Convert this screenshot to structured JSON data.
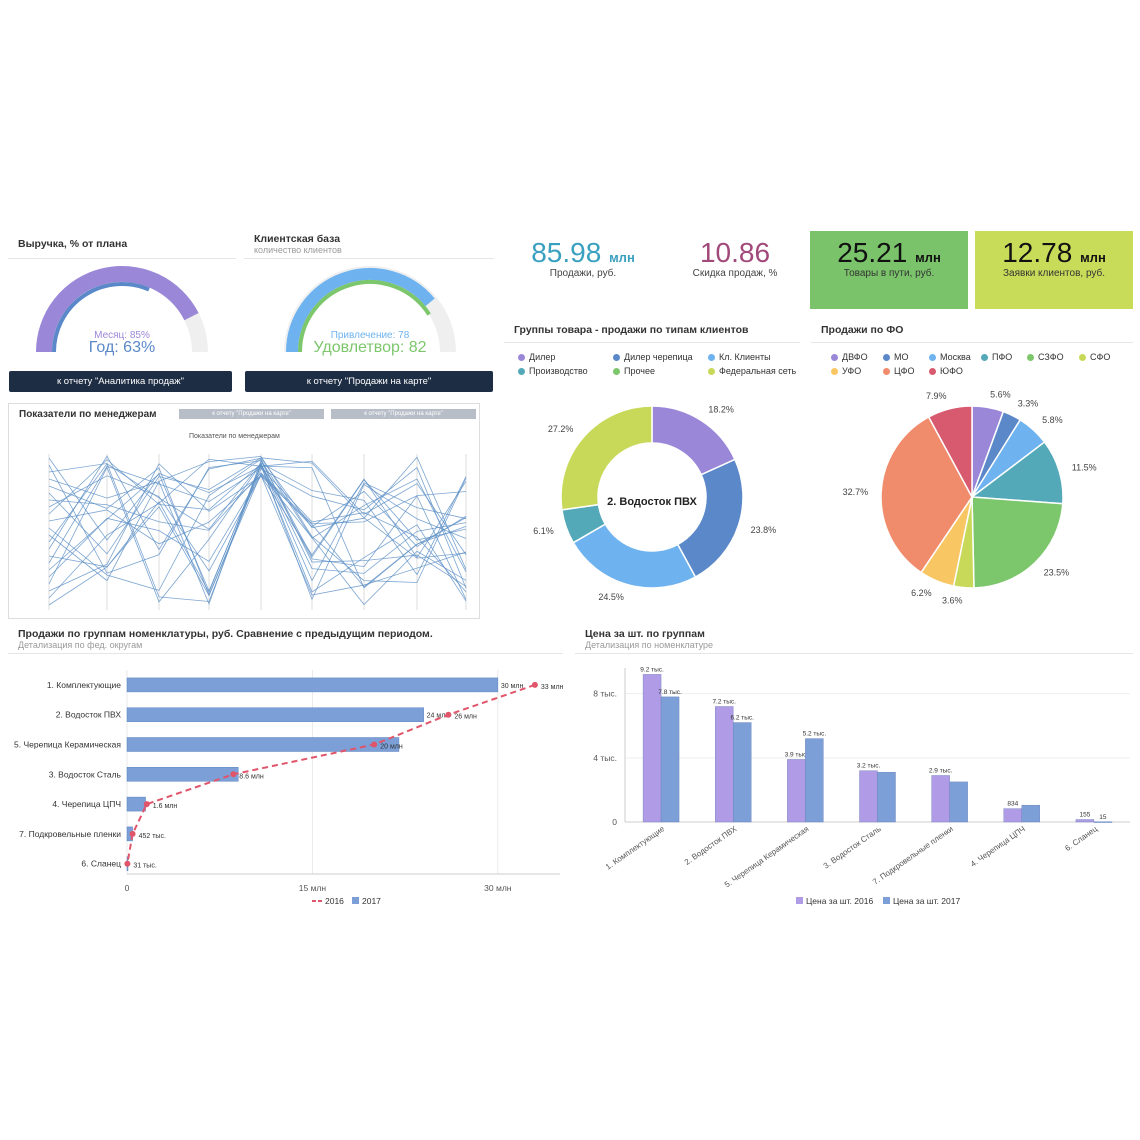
{
  "gauges": {
    "revenue": {
      "title": "Выручка, % от плана",
      "month_text": "Месяц: 85%",
      "year_text": "Год: 63%",
      "month": 85,
      "year": 63,
      "button": "к отчету \"Аналитика продаж\""
    },
    "clients": {
      "title": "Клиентская база",
      "subtitle": "количество клиентов",
      "attract_text": "Привлечение: 78",
      "satisfy_text": "Удовлетвор: 82",
      "attract": 78,
      "satisfy": 82,
      "button": "к отчету \"Продажи на карте\""
    }
  },
  "kpis": [
    {
      "value": "85.98",
      "unit": "млн",
      "label": "Продажи, руб.",
      "color": "#3aa0c0"
    },
    {
      "value": "10.86",
      "unit": "",
      "label": "Скидка продаж, %",
      "color": "#a0497a"
    },
    {
      "value": "25.21",
      "unit": "млн",
      "label": "Товары в пути, руб.",
      "bg": "#7ac36a"
    },
    {
      "value": "12.78",
      "unit": "млн",
      "label": "Заявки клиентов, руб.",
      "bg": "#c9dc5a"
    }
  ],
  "managers": {
    "title": "Показатели по менеджерам",
    "inner_title": "Показатели по менеджерам",
    "button1": "к отчету \"Продажи на карте\"",
    "button2": "к отчету \"Продажи на карте\""
  },
  "chart_data": [
    {
      "id": "groups_donut",
      "type": "pie",
      "title": "Группы товара - продажи по типам клиентов",
      "center_label": "2. Водосток ПВХ",
      "legend": [
        "Дилер",
        "Дилер черепица",
        "Кл. Клиенты",
        "Производство",
        "Прочее",
        "Федеральная сеть"
      ],
      "slices": [
        {
          "name": "Дилер",
          "value": 18.2,
          "label": "18.2%",
          "color": "#9b87d8"
        },
        {
          "name": "Дилер черепица",
          "value": 23.8,
          "label": "23.8%",
          "color": "#5b88c8"
        },
        {
          "name": "Кл. Клиенты",
          "value": 24.5,
          "label": "24.5%",
          "color": "#6eb3f0"
        },
        {
          "name": "Производство",
          "value": 6.1,
          "label": "6.1%",
          "color": "#54a9b8"
        },
        {
          "name": "Прочее",
          "value": 0.0,
          "label": "",
          "color": "#7cc66c"
        },
        {
          "name": "Федеральная сеть",
          "value": 27.2,
          "label": "27.2%",
          "color": "#c8d95a"
        }
      ]
    },
    {
      "id": "fo_pie",
      "type": "pie",
      "title": "Продажи по ФО",
      "legend": [
        "ДВФО",
        "МО",
        "Москва",
        "ПФО",
        "СЗФО",
        "СФО",
        "УФО",
        "ЦФО",
        "ЮФО"
      ],
      "slices": [
        {
          "name": "ДВФО",
          "value": 5.6,
          "label": "5.6%",
          "color": "#9b87d8"
        },
        {
          "name": "МО",
          "value": 3.3,
          "label": "3.3%",
          "color": "#5b88c8"
        },
        {
          "name": "Москва",
          "value": 5.8,
          "label": "5.8%",
          "color": "#6eb3f0"
        },
        {
          "name": "ПФО",
          "value": 11.5,
          "label": "11.5%",
          "color": "#54a9b8"
        },
        {
          "name": "СЗФО",
          "value": 23.5,
          "label": "23.5%",
          "color": "#7cc66c"
        },
        {
          "name": "СФО",
          "value": 3.6,
          "label": "3.6%",
          "color": "#c8d95a"
        },
        {
          "name": "УФО",
          "value": 6.2,
          "label": "6.2%",
          "color": "#f8c663"
        },
        {
          "name": "ЦФО",
          "value": 32.7,
          "label": "32.7%",
          "color": "#f08c6c"
        },
        {
          "name": "ЮФО",
          "value": 7.9,
          "label": "7.9%",
          "color": "#d85a6e"
        }
      ]
    },
    {
      "id": "nomen_bar",
      "type": "bar",
      "orientation": "horizontal",
      "title": "Продажи по группам номенклатуры, руб. Сравнение с предыдущим периодом.",
      "subtitle": "Детализация по фед. округам",
      "categories": [
        "1. Комплектующие",
        "2. Водосток ПВХ",
        "5. Черепица Керамическая",
        "3. Водосток Сталь",
        "4. Черепица ЦПЧ",
        "7. Подкровельные пленки",
        "6. Сланец"
      ],
      "series": [
        {
          "name": "2016",
          "type": "line",
          "color": "#e0556a",
          "values": [
            33,
            26,
            20,
            8.6,
            1.6,
            0.452,
            0.031
          ],
          "labels": [
            "33 млн",
            "26 млн",
            "20 млн",
            "8.6 млн",
            "1.6 млн",
            "452 тыс.",
            "31 тыс."
          ]
        },
        {
          "name": "2017",
          "type": "bar",
          "color": "#7b9fd6",
          "values": [
            30,
            24,
            22,
            9,
            1.5,
            0.45,
            0.03
          ],
          "labels": [
            "30 млн",
            "24 млн",
            "",
            "",
            "",
            "",
            ""
          ]
        }
      ],
      "xlim": [
        0,
        36
      ],
      "xticks": [
        {
          "v": 0,
          "t": "0"
        },
        {
          "v": 15,
          "t": "15 млн"
        },
        {
          "v": 30,
          "t": "30 млн"
        }
      ]
    },
    {
      "id": "price_bar",
      "type": "bar",
      "title": "Цена за шт. по группам",
      "subtitle": "Детализация по номенклатуре",
      "categories": [
        "1. Комплектующие",
        "2. Водосток ПВХ",
        "5. Черепица Керамическая",
        "3. Водосток Сталь",
        "7. Подкровельные пленки",
        "4. Черепица ЦПЧ",
        "6. Сланец"
      ],
      "series": [
        {
          "name": "Цена за шт. 2016",
          "color": "#b09be6",
          "values": [
            9.2,
            7.2,
            3.9,
            3.2,
            2.9,
            0.834,
            0.155
          ],
          "labels": [
            "9.2 тыс.",
            "7.2 тыс.",
            "3.9 тыс.",
            "3.2 тыс.",
            "2.9 тыс.",
            "834",
            "155"
          ]
        },
        {
          "name": "Цена за шт. 2017",
          "color": "#7b9fd6",
          "values": [
            7.8,
            6.2,
            5.2,
            3.1,
            2.5,
            1.05,
            0.015
          ],
          "labels": [
            "7.8 тыс.",
            "6.2 тыс.",
            "5.2 тыс.",
            "",
            "",
            "",
            "15"
          ]
        }
      ],
      "ylim": [
        0,
        9.6
      ],
      "yticks": [
        {
          "v": 0,
          "t": "0"
        },
        {
          "v": 4,
          "t": "4 тыс."
        },
        {
          "v": 8,
          "t": "8 тыс."
        }
      ]
    }
  ]
}
